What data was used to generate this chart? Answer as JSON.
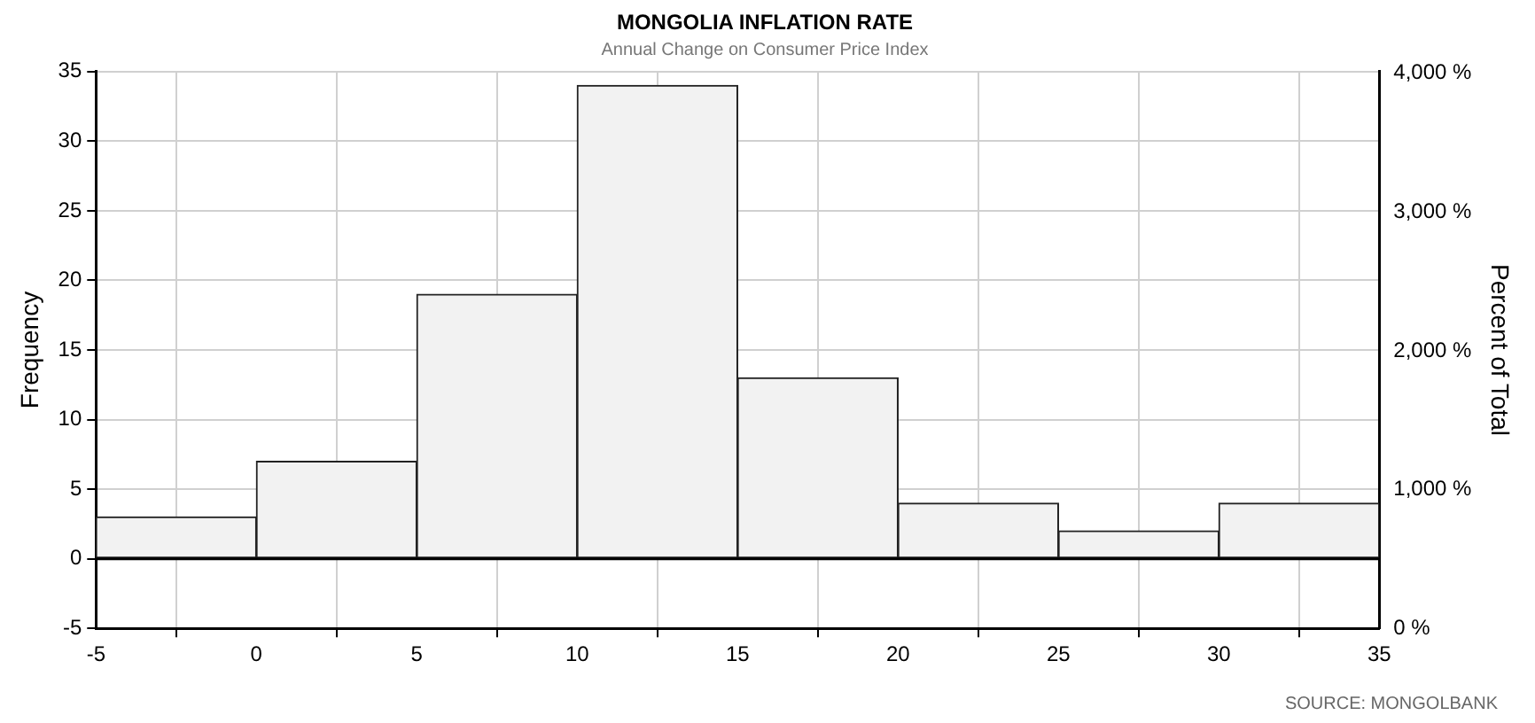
{
  "chart_data": {
    "type": "histogram",
    "title": "MONGOLIA INFLATION RATE",
    "subtitle": "Annual Change on Consumer Price Index",
    "ylabel": "Frequency",
    "y2label": "Percent of Total",
    "bins": [
      -5,
      0,
      5,
      10,
      15,
      20,
      25,
      30,
      35
    ],
    "values": [
      3,
      7,
      19,
      34,
      13,
      4,
      2,
      4
    ],
    "color": "#f2f2f2",
    "xlim": [
      -5,
      35
    ],
    "xticks": [
      -5,
      0,
      5,
      10,
      15,
      20,
      25,
      30,
      35
    ],
    "ylim": [
      -5,
      35
    ],
    "yticks": [
      -5,
      0,
      5,
      10,
      15,
      20,
      25,
      30,
      35
    ],
    "y2lim": [
      0,
      4013
    ],
    "y2ticks": [
      {
        "value": 0,
        "label": "0 %"
      },
      {
        "value": 1000,
        "label": "1,000 %"
      },
      {
        "value": 2000,
        "label": "2,000 %"
      },
      {
        "value": 3000,
        "label": "3,000 %"
      },
      {
        "value": 4000,
        "label": "4,000 %"
      }
    ],
    "ref_lines": [
      {
        "axis": "y",
        "value": 0,
        "color": "#000000"
      }
    ],
    "grid": true,
    "legend": false,
    "annotations": [
      "SOURCE: MONGOLBANK"
    ]
  }
}
